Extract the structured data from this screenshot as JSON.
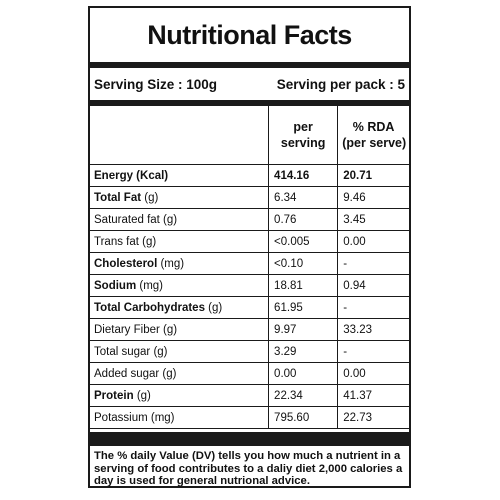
{
  "title": "Nutritional Facts",
  "serving_size": "Serving Size : 100g",
  "servings_per_pack": "Serving per pack : 5",
  "columns": {
    "per_serving_line1": "per",
    "per_serving_line2": "serving",
    "rda_line1": "% RDA",
    "rda_line2": "(per serve)"
  },
  "rows": [
    {
      "name": "Energy  (Kcal)",
      "per": "414.16",
      "rda": "20.71"
    },
    {
      "name_bold": "Total Fat",
      "name_rest": " (g)",
      "per": "6.34",
      "rda": "9.46"
    },
    {
      "name": "Saturated fat (g)",
      "per": "0.76",
      "rda": "3.45"
    },
    {
      "name": "Trans fat (g)",
      "per": "<0.005",
      "rda": "0.00"
    },
    {
      "name_bold": "Cholesterol",
      "name_rest": " (mg)",
      "per": "<0.10",
      "rda": "-"
    },
    {
      "name_bold": "Sodium",
      "name_rest": " (mg)",
      "per": "18.81",
      "rda": "0.94"
    },
    {
      "name_bold": "Total Carbohydrates",
      "name_rest": " (g)",
      "per": "61.95",
      "rda": "-"
    },
    {
      "name": "Dietary Fiber (g)",
      "per": "9.97",
      "rda": "33.23"
    },
    {
      "name": "Total sugar (g)",
      "per": "3.29",
      "rda": "-"
    },
    {
      "name": "Added sugar (g)",
      "per": "0.00",
      "rda": "0.00"
    },
    {
      "name_bold": "Protein",
      "name_rest": " (g)",
      "per": "22.34",
      "rda": "41.37"
    },
    {
      "name": "Potassium (mg)",
      "per": "795.60",
      "rda": "22.73"
    }
  ],
  "footnote": "The % daily Value (DV) tells you how much a nutrient in a serving of food contributes to a daliy diet 2,000 calories a day is used for general nutrional advice.",
  "colors": {
    "ink": "#1a1a1a",
    "background": "#ffffff"
  }
}
